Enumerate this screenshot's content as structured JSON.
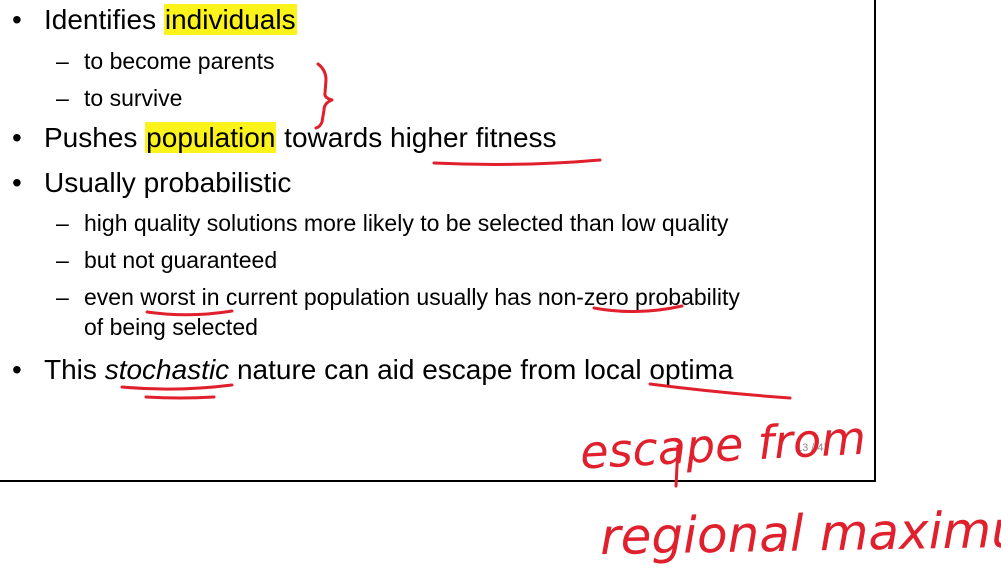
{
  "slide": {
    "bullets": [
      {
        "prefix": "Identifies ",
        "highlight": "individuals",
        "suffix": ""
      },
      {
        "prefix": "Pushes ",
        "highlight": "population",
        "suffix": " towards higher fitness"
      },
      {
        "text": "Usually probabilistic"
      },
      {
        "prefix": "This ",
        "italic": "stochastic",
        "suffix": " nature can aid escape from local optima"
      }
    ],
    "sub_bullets_1": [
      "to become parents",
      "to survive"
    ],
    "sub_bullets_3": [
      "high quality solutions more likely to be selected than low quality",
      "but not guaranteed",
      "even worst in current population usually has non-zero probability",
      "of being selected"
    ],
    "bullet_char": "•",
    "dash_char": "–",
    "slide_number": "13 / 47"
  },
  "annotations": {
    "handwritten_line1": "escape from",
    "handwritten_line2": "regional maximum",
    "ink_color": "#e0202c",
    "highlight_color": "#fbf31a"
  }
}
